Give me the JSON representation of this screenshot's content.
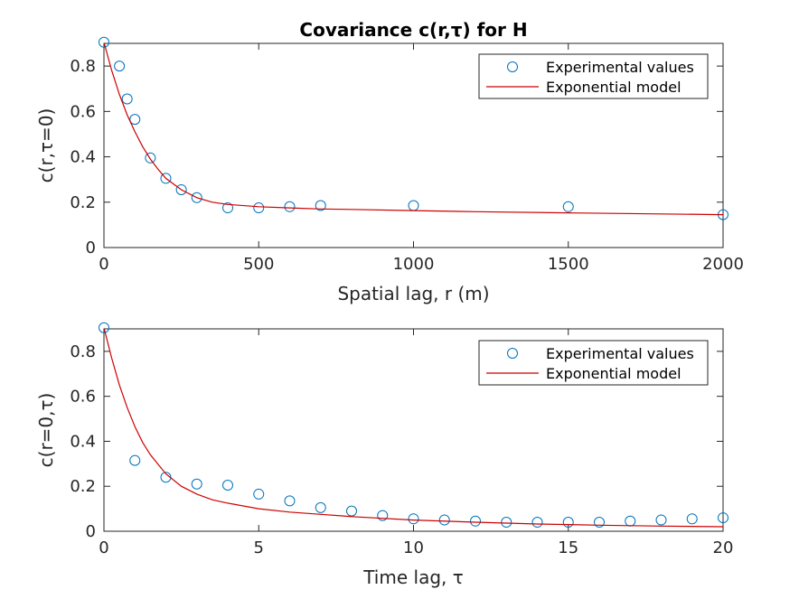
{
  "chart_data": [
    {
      "type": "scatter",
      "title": "Covariance c(r,τ) for H",
      "xlabel": "Spatial lag, r (m)",
      "ylabel": "c(r,τ=0)",
      "xlim": [
        0,
        2000
      ],
      "ylim": [
        0,
        0.9
      ],
      "xticks": [
        "0",
        "500",
        "1000",
        "1500",
        "2000"
      ],
      "yticks": [
        "0",
        "0.2",
        "0.4",
        "0.6",
        "0.8"
      ],
      "xtick_values": [
        0,
        500,
        1000,
        1500,
        2000
      ],
      "ytick_values": [
        0,
        0.2,
        0.4,
        0.6,
        0.8
      ],
      "legend_position": "top-right",
      "grid": false,
      "series": [
        {
          "name": "Experimental values",
          "type": "scatter",
          "color": "#0072BD",
          "x": [
            0,
            50,
            75,
            100,
            150,
            200,
            250,
            300,
            400,
            500,
            600,
            700,
            1000,
            1500,
            2000
          ],
          "y": [
            0.905,
            0.8,
            0.655,
            0.565,
            0.395,
            0.305,
            0.255,
            0.22,
            0.175,
            0.175,
            0.18,
            0.185,
            0.185,
            0.18,
            0.145
          ]
        },
        {
          "name": "Exponential model",
          "type": "line",
          "color": "#CC0000",
          "x": [
            0,
            25,
            50,
            75,
            100,
            125,
            150,
            175,
            200,
            250,
            300,
            350,
            400,
            500,
            600,
            700,
            800,
            1000,
            1200,
            1500,
            1800,
            2000
          ],
          "y": [
            0.905,
            0.78,
            0.675,
            0.585,
            0.51,
            0.445,
            0.39,
            0.345,
            0.305,
            0.255,
            0.22,
            0.2,
            0.19,
            0.18,
            0.175,
            0.17,
            0.168,
            0.163,
            0.158,
            0.153,
            0.148,
            0.145
          ]
        }
      ]
    },
    {
      "type": "scatter",
      "title": "",
      "xlabel": "Time lag, τ",
      "ylabel": "c(r=0,τ)",
      "xlim": [
        0,
        20
      ],
      "ylim": [
        0,
        0.9
      ],
      "xticks": [
        "0",
        "5",
        "10",
        "15",
        "20"
      ],
      "yticks": [
        "0",
        "0.2",
        "0.4",
        "0.6",
        "0.8"
      ],
      "xtick_values": [
        0,
        5,
        10,
        15,
        20
      ],
      "ytick_values": [
        0,
        0.2,
        0.4,
        0.6,
        0.8
      ],
      "legend_position": "top-right",
      "grid": false,
      "series": [
        {
          "name": "Experimental values",
          "type": "scatter",
          "color": "#0072BD",
          "x": [
            0,
            1,
            2,
            3,
            4,
            5,
            6,
            7,
            8,
            9,
            10,
            11,
            12,
            13,
            14,
            15,
            16,
            17,
            18,
            19,
            20
          ],
          "y": [
            0.905,
            0.315,
            0.24,
            0.21,
            0.205,
            0.165,
            0.135,
            0.105,
            0.09,
            0.07,
            0.055,
            0.05,
            0.045,
            0.04,
            0.04,
            0.04,
            0.04,
            0.045,
            0.05,
            0.055,
            0.06
          ]
        },
        {
          "name": "Exponential model",
          "type": "line",
          "color": "#CC0000",
          "x": [
            0,
            0.25,
            0.5,
            0.75,
            1,
            1.25,
            1.5,
            2,
            2.5,
            3,
            3.5,
            4,
            5,
            6,
            7,
            8,
            10,
            12,
            14,
            16,
            18,
            20
          ],
          "y": [
            0.905,
            0.77,
            0.65,
            0.55,
            0.465,
            0.395,
            0.34,
            0.255,
            0.2,
            0.165,
            0.14,
            0.125,
            0.1,
            0.085,
            0.075,
            0.065,
            0.05,
            0.04,
            0.032,
            0.027,
            0.023,
            0.02
          ]
        }
      ]
    }
  ]
}
